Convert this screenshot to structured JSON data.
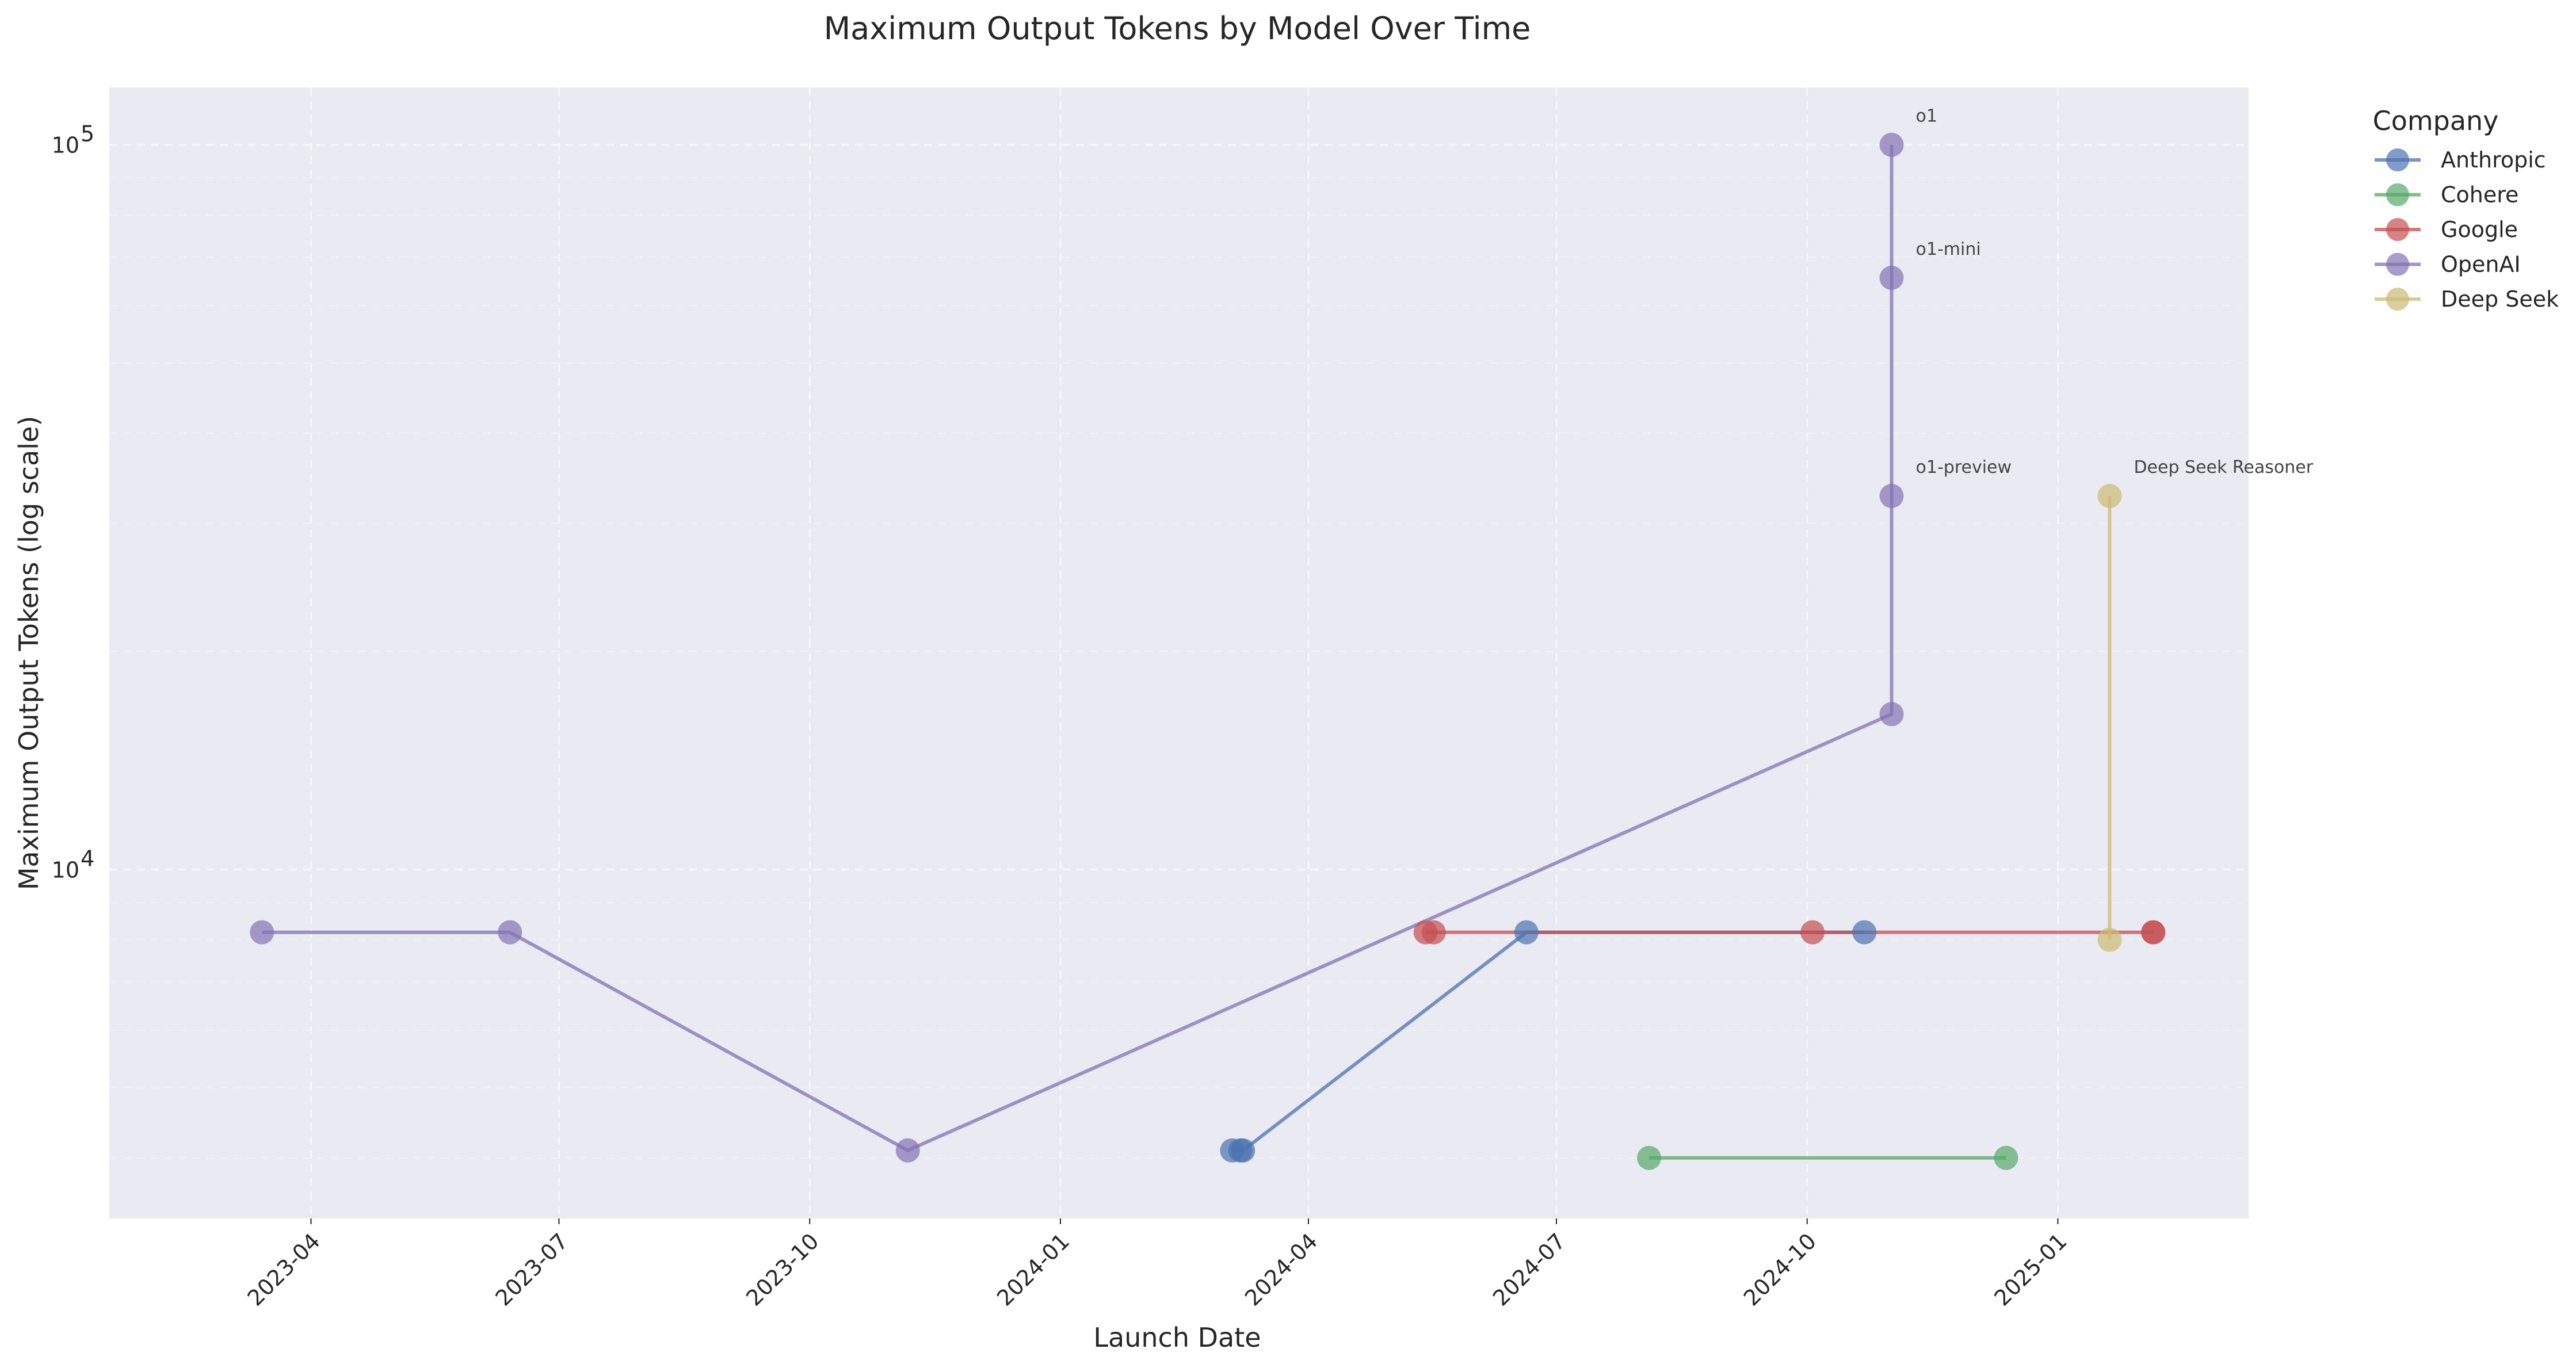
{
  "chart_data": {
    "type": "line",
    "title": "Maximum Output Tokens by Model Over Time",
    "xlabel": "Launch Date",
    "ylabel": "Maximum Output Tokens (log scale)",
    "yscale": "log",
    "ylim": [
      3300,
      120000
    ],
    "xlim": [
      "2023-01-17",
      "2025-03-12"
    ],
    "x_ticks": [
      "2023-04-01",
      "2023-07-01",
      "2023-10-01",
      "2024-01-01",
      "2024-04-01",
      "2024-07-01",
      "2024-10-01",
      "2025-01-01"
    ],
    "x_tick_labels": [
      "2023-04",
      "2023-07",
      "2023-10",
      "2024-01",
      "2024-04",
      "2024-07",
      "2024-10",
      "2025-01"
    ],
    "y_ticks": [
      10000,
      100000
    ],
    "y_tick_base": "10",
    "y_tick_exponents": [
      "4",
      "5"
    ],
    "grid": true,
    "legend_title": "Company",
    "legend_position": "outside-top-right",
    "colors": {
      "Anthropic": "#4c72b0",
      "Cohere": "#55a868",
      "Google": "#c44e52",
      "OpenAI": "#8172b3",
      "Deep Seek": "#ccb974",
      "background": "#eaeaf2"
    },
    "series": [
      {
        "name": "Anthropic",
        "points": [
          {
            "date": "2024-03-04",
            "value": 4096
          },
          {
            "date": "2024-03-07",
            "value": 4096
          },
          {
            "date": "2024-03-08",
            "value": 4096
          },
          {
            "date": "2024-06-20",
            "value": 8192
          },
          {
            "date": "2024-10-22",
            "value": 8192
          }
        ]
      },
      {
        "name": "Cohere",
        "points": [
          {
            "date": "2024-08-04",
            "value": 4000
          },
          {
            "date": "2024-12-13",
            "value": 4000
          }
        ]
      },
      {
        "name": "Google",
        "points": [
          {
            "date": "2024-05-14",
            "value": 8192
          },
          {
            "date": "2024-05-17",
            "value": 8192
          },
          {
            "date": "2024-10-03",
            "value": 8192
          },
          {
            "date": "2025-02-05",
            "value": 8192
          },
          {
            "date": "2025-02-05",
            "value": 8192
          }
        ]
      },
      {
        "name": "OpenAI",
        "points": [
          {
            "date": "2023-03-14",
            "value": 8192
          },
          {
            "date": "2023-06-13",
            "value": 8192
          },
          {
            "date": "2023-11-06",
            "value": 4096
          },
          {
            "date": "2024-11-01",
            "value": 16384
          },
          {
            "date": "2024-11-01",
            "value": 32768,
            "label": "o1-preview"
          },
          {
            "date": "2024-11-01",
            "value": 65536,
            "label": "o1-mini"
          },
          {
            "date": "2024-11-01",
            "value": 100000,
            "label": "o1"
          }
        ]
      },
      {
        "name": "Deep Seek",
        "points": [
          {
            "date": "2025-01-20",
            "value": 8000
          },
          {
            "date": "2025-01-20",
            "value": 32768,
            "label": "Deep Seek Reasoner"
          }
        ]
      }
    ]
  }
}
